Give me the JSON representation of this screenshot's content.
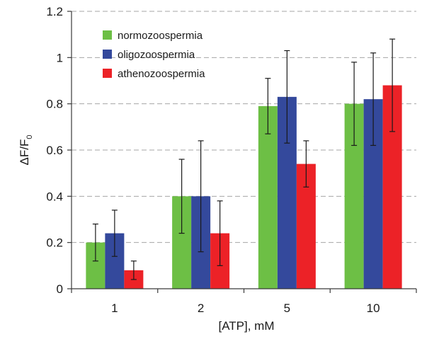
{
  "chart_data": {
    "type": "bar",
    "categories": [
      "1",
      "2",
      "5",
      "10"
    ],
    "series": [
      {
        "name": "normozoospermia",
        "color": "#6dbf45",
        "values": [
          0.2,
          0.4,
          0.79,
          0.8
        ],
        "err_low": [
          0.12,
          0.24,
          0.67,
          0.62
        ],
        "err_high": [
          0.28,
          0.56,
          0.91,
          0.98
        ]
      },
      {
        "name": "oligozoospermia",
        "color": "#34499c",
        "values": [
          0.24,
          0.4,
          0.83,
          0.82
        ],
        "err_low": [
          0.14,
          0.16,
          0.63,
          0.62
        ],
        "err_high": [
          0.34,
          0.64,
          1.03,
          1.02
        ]
      },
      {
        "name": "athenozoospermia",
        "color": "#ec2227",
        "values": [
          0.08,
          0.24,
          0.54,
          0.88
        ],
        "err_low": [
          0.04,
          0.1,
          0.44,
          0.68
        ],
        "err_high": [
          0.12,
          0.38,
          0.64,
          1.08
        ]
      }
    ],
    "y_ticks": [
      "0",
      "0.2",
      "0.4",
      "0.6",
      "0.8",
      "1",
      "1.2"
    ],
    "ylim": [
      0,
      1.2
    ],
    "xlabel": "[ATP], mM",
    "ylabel_main": "ΔF/F",
    "ylabel_sub": "0",
    "grid": true,
    "legend_position": "top-left"
  }
}
